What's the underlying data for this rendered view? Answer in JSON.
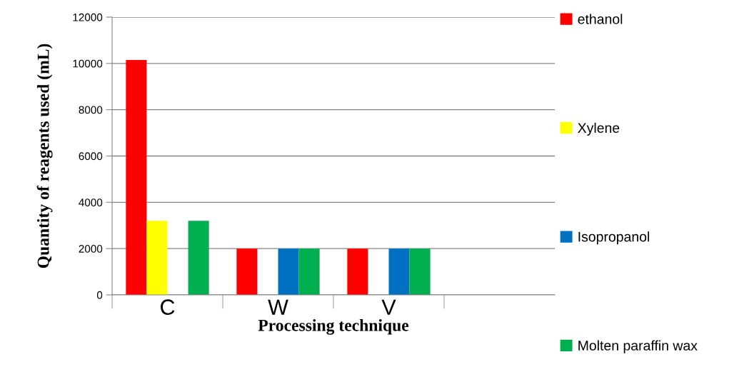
{
  "chart_data": {
    "type": "bar",
    "xlabel": "Processing technique",
    "ylabel": "Quantity of reagents used (mL)",
    "categories": [
      "C",
      "W",
      "V",
      null
    ],
    "series": [
      {
        "name": "ethanol",
        "color": "#ff0000",
        "values": [
          10150,
          2000,
          2000,
          null
        ]
      },
      {
        "name": "Xylene",
        "color": "#ffff00",
        "values": [
          3200,
          null,
          null,
          null
        ]
      },
      {
        "name": "Isopropanol",
        "color": "#0070c0",
        "values": [
          null,
          2000,
          2000,
          null
        ]
      },
      {
        "name": "Molten paraffin wax",
        "color": "#00b050",
        "values": [
          3200,
          2000,
          2000,
          null
        ]
      }
    ],
    "ylim": [
      0,
      12000
    ],
    "yticks": [
      0,
      2000,
      4000,
      6000,
      8000,
      10000,
      12000
    ],
    "grid": "y",
    "legend": "right"
  }
}
